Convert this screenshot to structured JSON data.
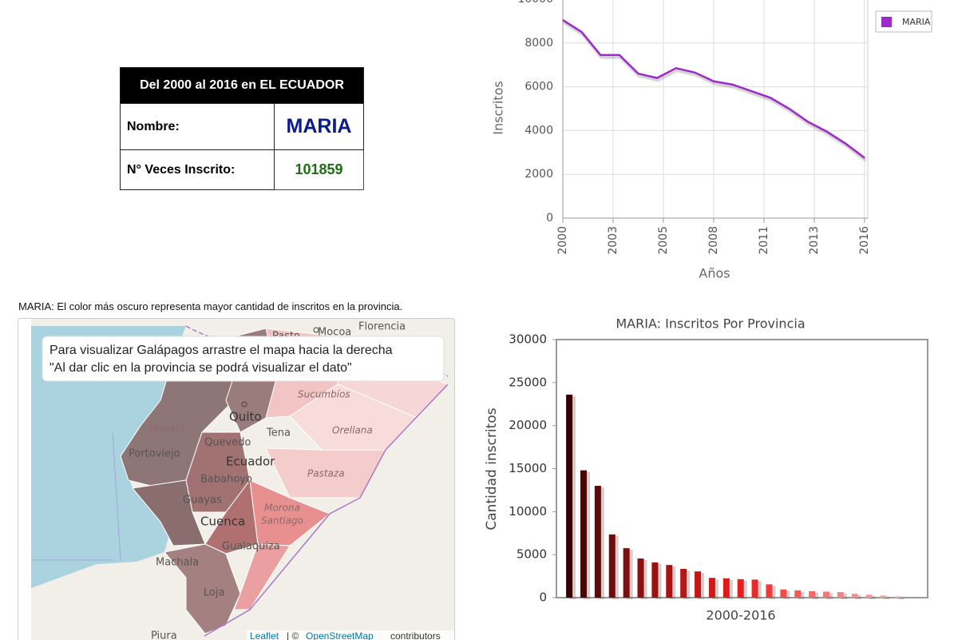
{
  "table": {
    "header": "Del 2000 al 2016 en EL ECUADOR",
    "rows": [
      [
        "Nombre:",
        "MARIA"
      ],
      [
        "N° Veces Inscrito:",
        101859
      ]
    ]
  },
  "map": {
    "caption": "MARIA: El color más oscuro representa mayor cantidad de inscritos en la provincia.",
    "notice": [
      "Para visualizar Galápagos arrastre el mapa hacia la derecha",
      "\"Al dar clic en la provincia se podrá visualizar el dato\""
    ],
    "labels": [
      "Pasto",
      "Mocoa",
      "Florencia",
      "Sucumbíos",
      "Quito",
      "Tena",
      "Orellana",
      "Manabí",
      "Portoviejo",
      "Quevedo",
      "Ecuador",
      "Pastaza",
      "Babahoyo",
      "Guayas",
      "Morona",
      "Santiago",
      "Cuenca",
      "Machala",
      "Gualaquiza",
      "Loja",
      "Piura"
    ],
    "attribution": {
      "leaflet": "Leaflet",
      "separator": "| ©",
      "osm": "OpenStreetMap",
      "suffix": "contributors"
    }
  },
  "chart_data": [
    {
      "type": "line",
      "x_label": "Años",
      "y_label": "Inscritos",
      "x": [
        2000,
        2001,
        2002,
        2003,
        2004,
        2005,
        2006,
        2007,
        2008,
        2009,
        2010,
        2011,
        2012,
        2013,
        2014,
        2015,
        2016
      ],
      "series": [
        {
          "name": "MARIA",
          "color": "#9b2ac8",
          "values": [
            9050,
            8500,
            7450,
            7450,
            6600,
            6400,
            6850,
            6650,
            6250,
            6100,
            5800,
            5500,
            5000,
            4400,
            3950,
            3400,
            2750
          ]
        }
      ],
      "xlim": [
        2000,
        2016
      ],
      "xticks": [
        2000,
        {
          "value": 2002.667,
          "label": "2003"
        },
        {
          "value": 2005.333,
          "label": "2005"
        },
        2008,
        {
          "value": 2010.667,
          "label": "2011"
        },
        {
          "value": 2013.333,
          "label": "2013"
        },
        2016
      ],
      "ylim": [
        0,
        10000
      ],
      "yticks": [
        0,
        2000,
        4000,
        6000,
        8000,
        10000
      ],
      "grid": true,
      "legend": "top-right"
    },
    {
      "type": "bar",
      "title": "MARIA: Inscritos Por Provincia",
      "x_label": "2000-2016",
      "y_label": "Cantidad inscritos",
      "categories": [
        null,
        null,
        null,
        null,
        null,
        null,
        null,
        null,
        null,
        null,
        null,
        null,
        null,
        null,
        null,
        null,
        null,
        null,
        null,
        null,
        null,
        null,
        null,
        null
      ],
      "values": [
        23600,
        14800,
        13000,
        7350,
        5750,
        4550,
        4100,
        3800,
        3350,
        3050,
        2300,
        2250,
        2150,
        2100,
        1550,
        950,
        850,
        750,
        700,
        650,
        450,
        350,
        250,
        150
      ],
      "colors": [
        "#3a0000",
        "#4d0505",
        "#5e0a0a",
        "#6e0d0d",
        "#7d0f0f",
        "#8c1010",
        "#9a1212",
        "#a81414",
        "#b51616",
        "#c21818",
        "#cf1a1a",
        "#db1c1c",
        "#e41f1f",
        "#ea2a2a",
        "#ed3a3a",
        "#ef4d4d",
        "#f05c5c",
        "#f26a6a",
        "#f37777",
        "#f48383",
        "#f58e8e",
        "#f69999",
        "#f7a3a3",
        "#f8adad"
      ],
      "ylim": [
        0,
        30000
      ],
      "yticks": [
        0,
        5000,
        10000,
        15000,
        20000,
        25000,
        30000
      ],
      "grid": false
    }
  ]
}
